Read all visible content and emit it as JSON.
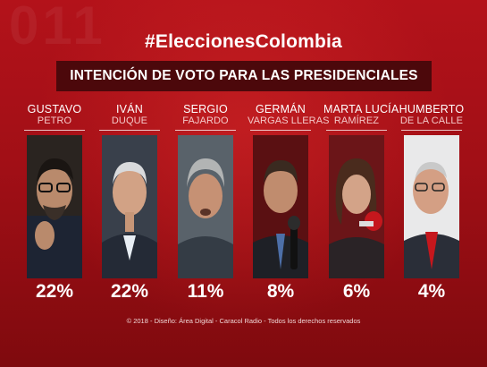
{
  "header": {
    "background_text": "011",
    "hashtag": "#EleccionesColombia",
    "subtitle": "INTENCIÓN DE VOTO PARA LAS PRESIDENCIALES"
  },
  "candidates": [
    {
      "first": "GUSTAVO",
      "last": "PETRO",
      "value": "22%",
      "portrait": "portrait-petro"
    },
    {
      "first": "IVÁN",
      "last": "DUQUE",
      "value": "22%",
      "portrait": "portrait-duque"
    },
    {
      "first": "SERGIO",
      "last": "FAJARDO",
      "value": "11%",
      "portrait": "portrait-fajardo"
    },
    {
      "first": "GERMÁN",
      "last": "VARGAS LLERAS",
      "value": "8%",
      "portrait": "portrait-vargas-lleras"
    },
    {
      "first": "MARTA LUCÍA",
      "last": "RAMÍREZ",
      "value": "6%",
      "portrait": "portrait-ramirez"
    },
    {
      "first": "HUMBERTO",
      "last": "DE LA CALLE",
      "value": "4%",
      "portrait": "portrait-de-la-calle"
    }
  ],
  "chart_data": {
    "type": "bar",
    "title": "INTENCIÓN DE VOTO PARA LAS PRESIDENCIALES",
    "categories": [
      "GUSTAVO PETRO",
      "IVÁN DUQUE",
      "SERGIO FAJARDO",
      "GERMÁN VARGAS LLERAS",
      "MARTA LUCÍA RAMÍREZ",
      "HUMBERTO DE LA CALLE"
    ],
    "values": [
      22,
      22,
      11,
      8,
      6,
      4
    ],
    "unit": "%"
  },
  "footer": {
    "credit": "© 2018 - Diseño: Área Digital - Caracol Radio - Todos los derechos reservados"
  },
  "colors": {
    "background": "#a10f16",
    "subtitle_box": "#4c080b",
    "text": "#ffffff"
  }
}
